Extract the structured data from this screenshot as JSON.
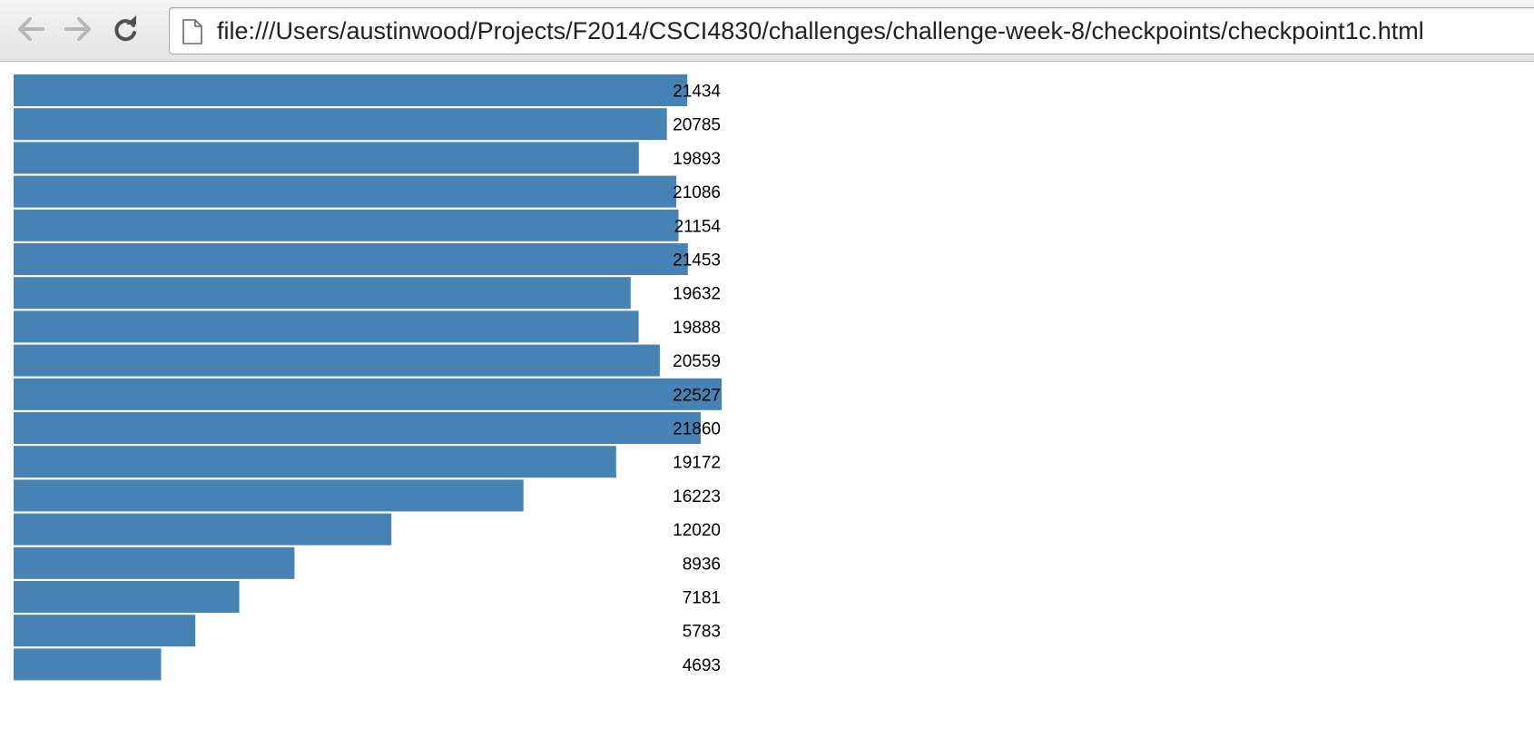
{
  "browser": {
    "url": "file:///Users/austinwood/Projects/F2014/CSCI4830/challenges/challenge-week-8/checkpoints/checkpoint1c.html",
    "icons": {
      "back": "back-arrow-icon",
      "forward": "forward-arrow-icon",
      "reload": "reload-icon",
      "page": "document-page-icon"
    }
  },
  "chart_data": {
    "type": "bar",
    "orientation": "horizontal",
    "bar_color": "#4682b4",
    "values": [
      21434,
      20785,
      19893,
      21086,
      21154,
      21453,
      19632,
      19888,
      20559,
      22527,
      21860,
      19172,
      16223,
      12020,
      8936,
      7181,
      5783,
      4693
    ],
    "labels": [
      "21434",
      "20785",
      "19893",
      "21086",
      "21154",
      "21453",
      "19632",
      "19888",
      "20559",
      "22527",
      "21860",
      "19172",
      "16223",
      "12020",
      "8936",
      "7181",
      "5783",
      "4693"
    ],
    "title": "",
    "xlabel": "",
    "ylabel": "",
    "grid": false
  }
}
